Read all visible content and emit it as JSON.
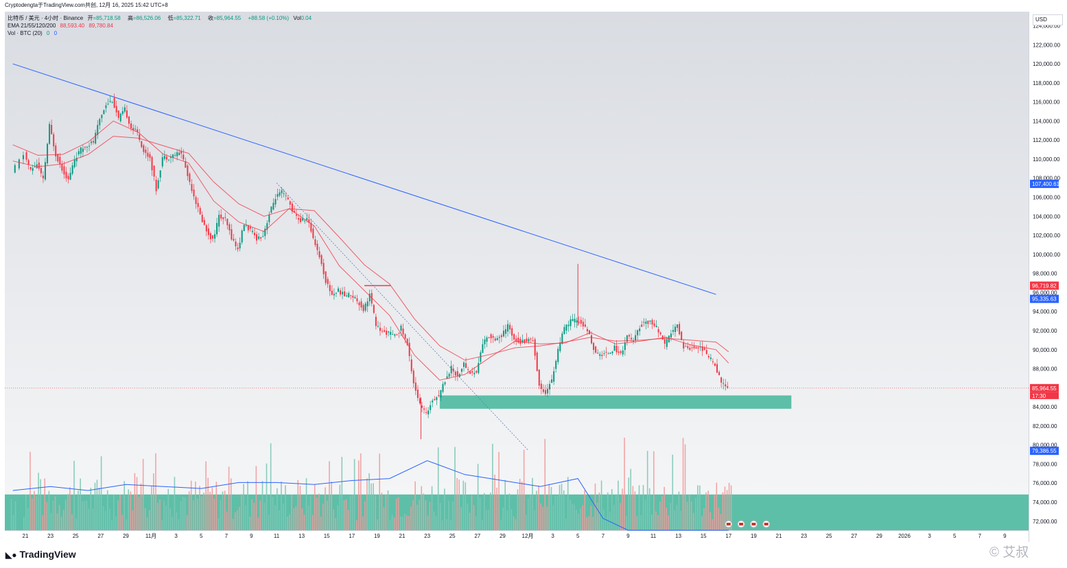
{
  "header": "Cryptodengta于TradingView.com共创, 12月 16, 2025 15:42 UTC+8",
  "legend": {
    "symbol": "比特币 / 美元 · 4小时 · Binance",
    "open_label": "开",
    "open": "=85,718.58",
    "high_label": "高",
    "high": "=86,526.06",
    "low_label": "低",
    "low": "=85,322.71",
    "close_label": "收",
    "close": "=85,964.55",
    "change": "+88.58 (+0.10%)",
    "vol_label": "Vol",
    "vol": "0.04",
    "ema_label": "EMA 21/55/120/200",
    "ema_values": [
      "88,593.40",
      "89,780.84"
    ],
    "volume_label": "Vol · BTC (20)",
    "volume_values": [
      "0",
      "0"
    ]
  },
  "currency": "USD",
  "branding": {
    "logo": "TradingView",
    "watermark": "© 艾叔"
  },
  "colors": {
    "up": "#089981",
    "down": "#f23645",
    "trendline": "#2962ff",
    "zone": "#5dbfa8",
    "ema": "#f23645"
  },
  "chart_data": {
    "type": "candlestick",
    "interval": "4h",
    "y_ticks": [
      "124,000.00",
      "122,000.00",
      "120,000.00",
      "118,000.00",
      "116,000.00",
      "114,000.00",
      "112,000.00",
      "110,000.00",
      "108,000.00",
      "106,000.00",
      "104,000.00",
      "102,000.00",
      "100,000.00",
      "98,000.00",
      "96,000.00",
      "94,000.00",
      "92,000.00",
      "90,000.00",
      "88,000.00",
      "86,000.00",
      "84,000.00",
      "82,000.00",
      "80,000.00",
      "78,000.00",
      "76,000.00",
      "74,000.00",
      "72,000.00"
    ],
    "ylim": [
      71000,
      125000
    ],
    "x_ticks": [
      "21",
      "23",
      "25",
      "27",
      "29",
      "11月",
      "3",
      "5",
      "7",
      "9",
      "11",
      "13",
      "15",
      "17",
      "19",
      "21",
      "23",
      "25",
      "27",
      "29",
      "12月",
      "3",
      "5",
      "7",
      "9",
      "11",
      "13",
      "15",
      "17",
      "19",
      "21",
      "23",
      "25",
      "27",
      "29",
      "2026",
      "3",
      "5",
      "7",
      "9"
    ],
    "price_labels": [
      {
        "text": "107,400.61",
        "value": 107400.61,
        "color": "#2962ff"
      },
      {
        "text": "96,719.82",
        "value": 96719.82,
        "color": "#f23645"
      },
      {
        "text": "95,335.63",
        "value": 95335.63,
        "color": "#2962ff"
      },
      {
        "text": "85,964.55",
        "value": 85964.55,
        "color": "#f23645"
      },
      {
        "text": "79,386.55",
        "value": 79386.55,
        "color": "#2962ff"
      }
    ],
    "countdown": "17:30",
    "price_path": [
      [
        "10-20",
        108500
      ],
      [
        "10-21",
        110500
      ],
      [
        "10-21T12",
        108800
      ],
      [
        "10-22",
        109500
      ],
      [
        "10-22T12",
        107800
      ],
      [
        "10-23",
        113500
      ],
      [
        "10-23T12",
        110500
      ],
      [
        "10-24",
        109000
      ],
      [
        "10-24T12",
        107800
      ],
      [
        "10-25",
        110000
      ],
      [
        "10-25T12",
        111000
      ],
      [
        "10-26",
        111500
      ],
      [
        "10-26T12",
        111800
      ],
      [
        "10-27",
        114200
      ],
      [
        "10-27T12",
        115800
      ],
      [
        "10-28",
        116200
      ],
      [
        "10-28T12",
        114200
      ],
      [
        "10-29",
        115200
      ],
      [
        "10-29T12",
        113300
      ],
      [
        "10-30",
        112800
      ],
      [
        "10-30T12",
        110800
      ],
      [
        "10-31",
        110200
      ],
      [
        "10-31T12",
        106800
      ],
      [
        "11-01",
        110200
      ],
      [
        "11-01T12",
        110200
      ],
      [
        "11-02",
        110500
      ],
      [
        "11-02T12",
        110700
      ],
      [
        "11-03",
        108300
      ],
      [
        "11-03T12",
        106200
      ],
      [
        "11-04",
        104100
      ],
      [
        "11-04T12",
        102500
      ],
      [
        "11-05",
        101500
      ],
      [
        "11-05T12",
        104000
      ],
      [
        "11-06",
        103600
      ],
      [
        "11-06T12",
        101800
      ],
      [
        "11-07",
        100500
      ],
      [
        "11-07T12",
        103200
      ],
      [
        "11-08",
        102500
      ],
      [
        "11-08T12",
        101700
      ],
      [
        "11-09",
        102000
      ],
      [
        "11-09T12",
        104200
      ],
      [
        "11-10",
        106000
      ],
      [
        "11-10T12",
        106500
      ],
      [
        "11-11",
        105700
      ],
      [
        "11-11T12",
        104200
      ],
      [
        "11-12",
        103500
      ],
      [
        "11-12T12",
        103800
      ],
      [
        "11-13",
        101800
      ],
      [
        "11-13T12",
        99800
      ],
      [
        "11-14",
        97200
      ],
      [
        "11-14T12",
        95800
      ],
      [
        "11-15",
        96200
      ],
      [
        "11-15T12",
        95700
      ],
      [
        "11-16",
        95800
      ],
      [
        "11-16T12",
        95200
      ],
      [
        "11-17",
        94200
      ],
      [
        "11-17T12",
        95800
      ],
      [
        "11-18",
        92600
      ],
      [
        "11-18T12",
        91800
      ],
      [
        "11-19",
        91800
      ],
      [
        "11-19T12",
        91400
      ],
      [
        "11-20",
        92300
      ],
      [
        "11-20T12",
        90500
      ],
      [
        "11-21",
        86600
      ],
      [
        "11-21T12",
        84200
      ],
      [
        "11-22",
        83200
      ],
      [
        "11-22T12",
        84800
      ],
      [
        "11-23",
        85200
      ],
      [
        "11-23T12",
        86800
      ],
      [
        "11-24",
        88100
      ],
      [
        "11-24T12",
        87200
      ],
      [
        "11-25",
        88500
      ],
      [
        "11-25T12",
        87600
      ],
      [
        "11-26",
        87600
      ],
      [
        "11-26T12",
        90700
      ],
      [
        "11-27",
        91400
      ],
      [
        "11-27T12",
        91200
      ],
      [
        "11-28",
        91400
      ],
      [
        "11-28T12",
        92500
      ],
      [
        "11-29",
        91200
      ],
      [
        "11-29T12",
        90800
      ],
      [
        "11-30",
        91000
      ],
      [
        "11-30T12",
        91100
      ],
      [
        "12-01",
        86200
      ],
      [
        "12-01T12",
        85500
      ],
      [
        "12-02",
        86800
      ],
      [
        "12-02T12",
        90000
      ],
      [
        "12-03",
        92200
      ],
      [
        "12-03T12",
        93000
      ],
      [
        "12-04",
        93100
      ],
      [
        "12-04T12",
        92600
      ],
      [
        "12-05",
        91500
      ],
      [
        "12-05T12",
        89500
      ],
      [
        "12-06",
        89500
      ],
      [
        "12-06T12",
        89700
      ],
      [
        "12-07",
        90200
      ],
      [
        "12-07T12",
        89500
      ],
      [
        "12-08",
        91500
      ],
      [
        "12-08T12",
        90800
      ],
      [
        "12-09",
        92400
      ],
      [
        "12-09T12",
        93000
      ],
      [
        "12-10",
        92800
      ],
      [
        "12-10T12",
        92000
      ],
      [
        "12-11",
        90400
      ],
      [
        "12-11T12",
        91800
      ],
      [
        "12-12",
        92500
      ],
      [
        "12-12T12",
        90300
      ],
      [
        "12-13",
        90200
      ],
      [
        "12-13T12",
        90300
      ],
      [
        "12-14",
        90100
      ],
      [
        "12-14T12",
        89200
      ],
      [
        "12-15",
        88500
      ],
      [
        "12-15T12",
        86500
      ],
      [
        "12-16",
        85964.55
      ]
    ],
    "ema_21_path": [
      [
        "10-20",
        111500
      ],
      [
        "10-22",
        110400
      ],
      [
        "10-24",
        110500
      ],
      [
        "10-26",
        111800
      ],
      [
        "10-28",
        114000
      ],
      [
        "10-30",
        112800
      ],
      [
        "11-01",
        110500
      ],
      [
        "11-03",
        109600
      ],
      [
        "11-05",
        105600
      ],
      [
        "11-07",
        103400
      ],
      [
        "11-09",
        102400
      ],
      [
        "11-11",
        104800
      ],
      [
        "11-13",
        103000
      ],
      [
        "11-15",
        98800
      ],
      [
        "11-17",
        96200
      ],
      [
        "11-19",
        93600
      ],
      [
        "11-21",
        89400
      ],
      [
        "11-23",
        86800
      ],
      [
        "11-25",
        87400
      ],
      [
        "11-27",
        89200
      ],
      [
        "11-29",
        90900
      ],
      [
        "12-01",
        90600
      ],
      [
        "12-03",
        90700
      ],
      [
        "12-05",
        91800
      ],
      [
        "12-07",
        90600
      ],
      [
        "12-09",
        90900
      ],
      [
        "12-11",
        91300
      ],
      [
        "12-13",
        90500
      ],
      [
        "12-15",
        90000
      ],
      [
        "12-16",
        88593.4
      ]
    ],
    "ema_55_path": [
      [
        "10-20",
        109800
      ],
      [
        "10-22",
        109200
      ],
      [
        "10-24",
        109500
      ],
      [
        "10-26",
        110500
      ],
      [
        "10-28",
        112400
      ],
      [
        "10-30",
        112200
      ],
      [
        "11-01",
        111400
      ],
      [
        "11-03",
        110600
      ],
      [
        "11-05",
        107600
      ],
      [
        "11-07",
        105300
      ],
      [
        "11-09",
        104000
      ],
      [
        "11-11",
        104800
      ],
      [
        "11-13",
        104600
      ],
      [
        "11-15",
        101800
      ],
      [
        "11-17",
        98900
      ],
      [
        "11-19",
        96900
      ],
      [
        "11-21",
        93200
      ],
      [
        "11-23",
        90400
      ],
      [
        "11-25",
        88900
      ],
      [
        "11-27",
        89500
      ],
      [
        "11-29",
        90200
      ],
      [
        "12-01",
        90400
      ],
      [
        "12-03",
        90800
      ],
      [
        "12-05",
        91300
      ],
      [
        "12-07",
        90900
      ],
      [
        "12-09",
        91000
      ],
      [
        "12-11",
        91200
      ],
      [
        "12-13",
        91000
      ],
      [
        "12-15",
        90800
      ],
      [
        "12-16",
        89780.84
      ]
    ],
    "volume": {
      "moving_average": [
        [
          "10-20",
          20
        ],
        [
          "10-23",
          22
        ],
        [
          "10-26",
          20
        ],
        [
          "10-29",
          23
        ],
        [
          "11-01",
          22
        ],
        [
          "11-04",
          21
        ],
        [
          "11-07",
          24
        ],
        [
          "11-10",
          24
        ],
        [
          "11-13",
          23
        ],
        [
          "11-16",
          25
        ],
        [
          "11-19",
          26
        ],
        [
          "11-22",
          35
        ],
        [
          "11-25",
          28
        ],
        [
          "11-28",
          25
        ],
        [
          "12-01",
          22
        ],
        [
          "12-04",
          26
        ],
        [
          "12-06",
          6
        ],
        [
          "12-08",
          0
        ],
        [
          "12-16",
          0
        ]
      ],
      "ylim": [
        0,
        60
      ]
    },
    "annotations": {
      "descending_trendline": {
        "from": [
          "10-20",
          120000
        ],
        "to": [
          "12-15",
          95800
        ]
      },
      "dotted_trendline": {
        "from": [
          "11-10",
          107500
        ],
        "to": [
          "11-30",
          79500
        ]
      },
      "support_zone": {
        "from": "11-23",
        "to": "12-21",
        "low": 83800,
        "high": 85200
      },
      "resistance_line": {
        "from": "11-17",
        "to": "11-18",
        "value": 96719.82
      },
      "volume_zone": {
        "low": 0,
        "high": 18
      }
    },
    "event_icons": [
      "12-16",
      "12-17",
      "12-18",
      "12-19"
    ]
  }
}
